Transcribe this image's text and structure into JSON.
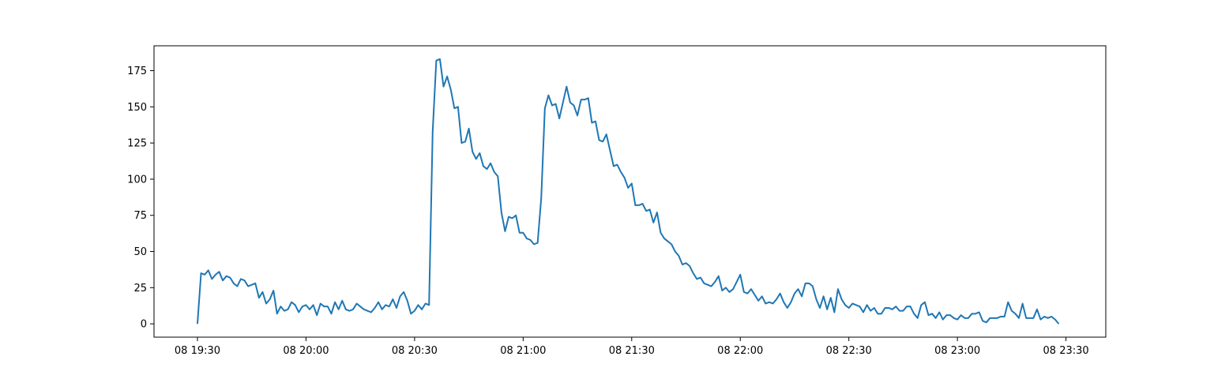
{
  "chart_data": {
    "type": "line",
    "title": "",
    "xlabel": "",
    "ylabel": "",
    "x_start": "08 19:30",
    "x_end": "08 23:29",
    "x_step_minutes": 1,
    "xlim": [
      "08 19:18",
      "08 23:41"
    ],
    "ylim": [
      -9.2,
      192.2
    ],
    "grid": false,
    "legend": "none",
    "x_ticks": [
      {
        "t": "08 19:30",
        "label": "08 19:30"
      },
      {
        "t": "08 20:00",
        "label": "08 20:00"
      },
      {
        "t": "08 20:30",
        "label": "08 20:30"
      },
      {
        "t": "08 21:00",
        "label": "08 21:00"
      },
      {
        "t": "08 21:30",
        "label": "08 21:30"
      },
      {
        "t": "08 22:00",
        "label": "08 22:00"
      },
      {
        "t": "08 22:30",
        "label": "08 22:30"
      },
      {
        "t": "08 23:00",
        "label": "08 23:00"
      },
      {
        "t": "08 23:30",
        "label": "08 23:30"
      }
    ],
    "y_ticks": [
      {
        "v": 0,
        "label": "0"
      },
      {
        "v": 25,
        "label": "25"
      },
      {
        "v": 50,
        "label": "50"
      },
      {
        "v": 75,
        "label": "75"
      },
      {
        "v": 100,
        "label": "100"
      },
      {
        "v": 125,
        "label": "125"
      },
      {
        "v": 150,
        "label": "150"
      },
      {
        "v": 175,
        "label": "175"
      }
    ],
    "series": [
      {
        "color": "#1f77b4",
        "values": [
          0,
          35,
          34,
          37,
          31,
          34,
          36,
          30,
          33,
          32,
          28,
          26,
          31,
          30,
          26,
          27,
          28,
          18,
          22,
          14,
          17,
          23,
          7,
          12,
          9,
          10,
          15,
          13,
          8,
          12,
          13,
          10,
          13,
          6,
          14,
          12,
          12,
          7,
          15,
          10,
          16,
          10,
          9,
          10,
          14,
          12,
          10,
          9,
          8,
          11,
          15,
          10,
          13,
          12,
          17,
          11,
          19,
          22,
          16,
          7,
          9,
          13,
          10,
          14,
          13,
          133,
          182,
          183,
          164,
          171,
          162,
          149,
          150,
          125,
          126,
          135,
          119,
          114,
          118,
          109,
          107,
          111,
          105,
          102,
          77,
          64,
          74,
          73,
          75,
          63,
          63,
          59,
          58,
          55,
          56,
          87,
          149,
          158,
          151,
          152,
          142,
          153,
          164,
          153,
          151,
          144,
          155,
          155,
          156,
          139,
          140,
          127,
          126,
          131,
          120,
          109,
          110,
          105,
          101,
          94,
          97,
          82,
          82,
          83,
          78,
          79,
          70,
          77,
          63,
          59,
          57,
          55,
          50,
          47,
          41,
          42,
          40,
          35,
          31,
          32,
          28,
          27,
          26,
          29,
          33,
          23,
          25,
          22,
          24,
          29,
          34,
          22,
          21,
          24,
          20,
          16,
          19,
          14,
          15,
          14,
          17,
          21,
          15,
          11,
          15,
          21,
          24,
          19,
          28,
          28,
          26,
          17,
          11,
          19,
          10,
          18,
          8,
          24,
          17,
          13,
          11,
          14,
          13,
          12,
          8,
          13,
          9,
          11,
          7,
          7,
          11,
          11,
          10,
          12,
          9,
          9,
          12,
          12,
          7,
          4,
          13,
          15,
          6,
          7,
          4,
          8,
          3,
          6,
          6,
          4,
          3,
          6,
          4,
          4,
          7,
          7,
          8,
          2,
          1,
          4,
          4,
          4,
          5,
          5,
          15,
          9,
          7,
          4,
          14,
          4,
          4,
          4,
          10,
          3,
          5,
          4,
          5,
          3,
          0
        ]
      }
    ]
  }
}
